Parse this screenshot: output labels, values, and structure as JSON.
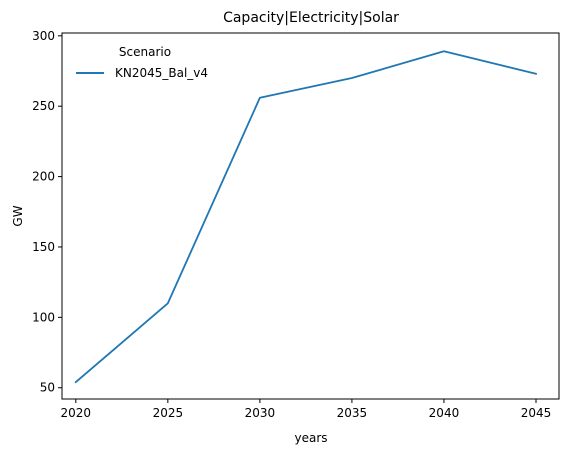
{
  "chart_data": {
    "type": "line",
    "title": "Capacity|Electricity|Solar",
    "xlabel": "years",
    "ylabel": "GW",
    "x": [
      2020,
      2025,
      2030,
      2035,
      2040,
      2045
    ],
    "xticks": [
      "2020",
      "2025",
      "2030",
      "2035",
      "2040",
      "2045"
    ],
    "yticks": [
      "50",
      "100",
      "150",
      "200",
      "250",
      "300"
    ],
    "xlim": [
      2019.25,
      2046.25
    ],
    "ylim": [
      42,
      302
    ],
    "grid": false,
    "legend": {
      "title": "Scenario",
      "placement": "top-left"
    },
    "series": [
      {
        "name": "KN2045_Bal_v4",
        "color": "#1f77b4",
        "values": [
          54,
          110,
          256,
          270,
          289,
          273
        ]
      }
    ]
  }
}
